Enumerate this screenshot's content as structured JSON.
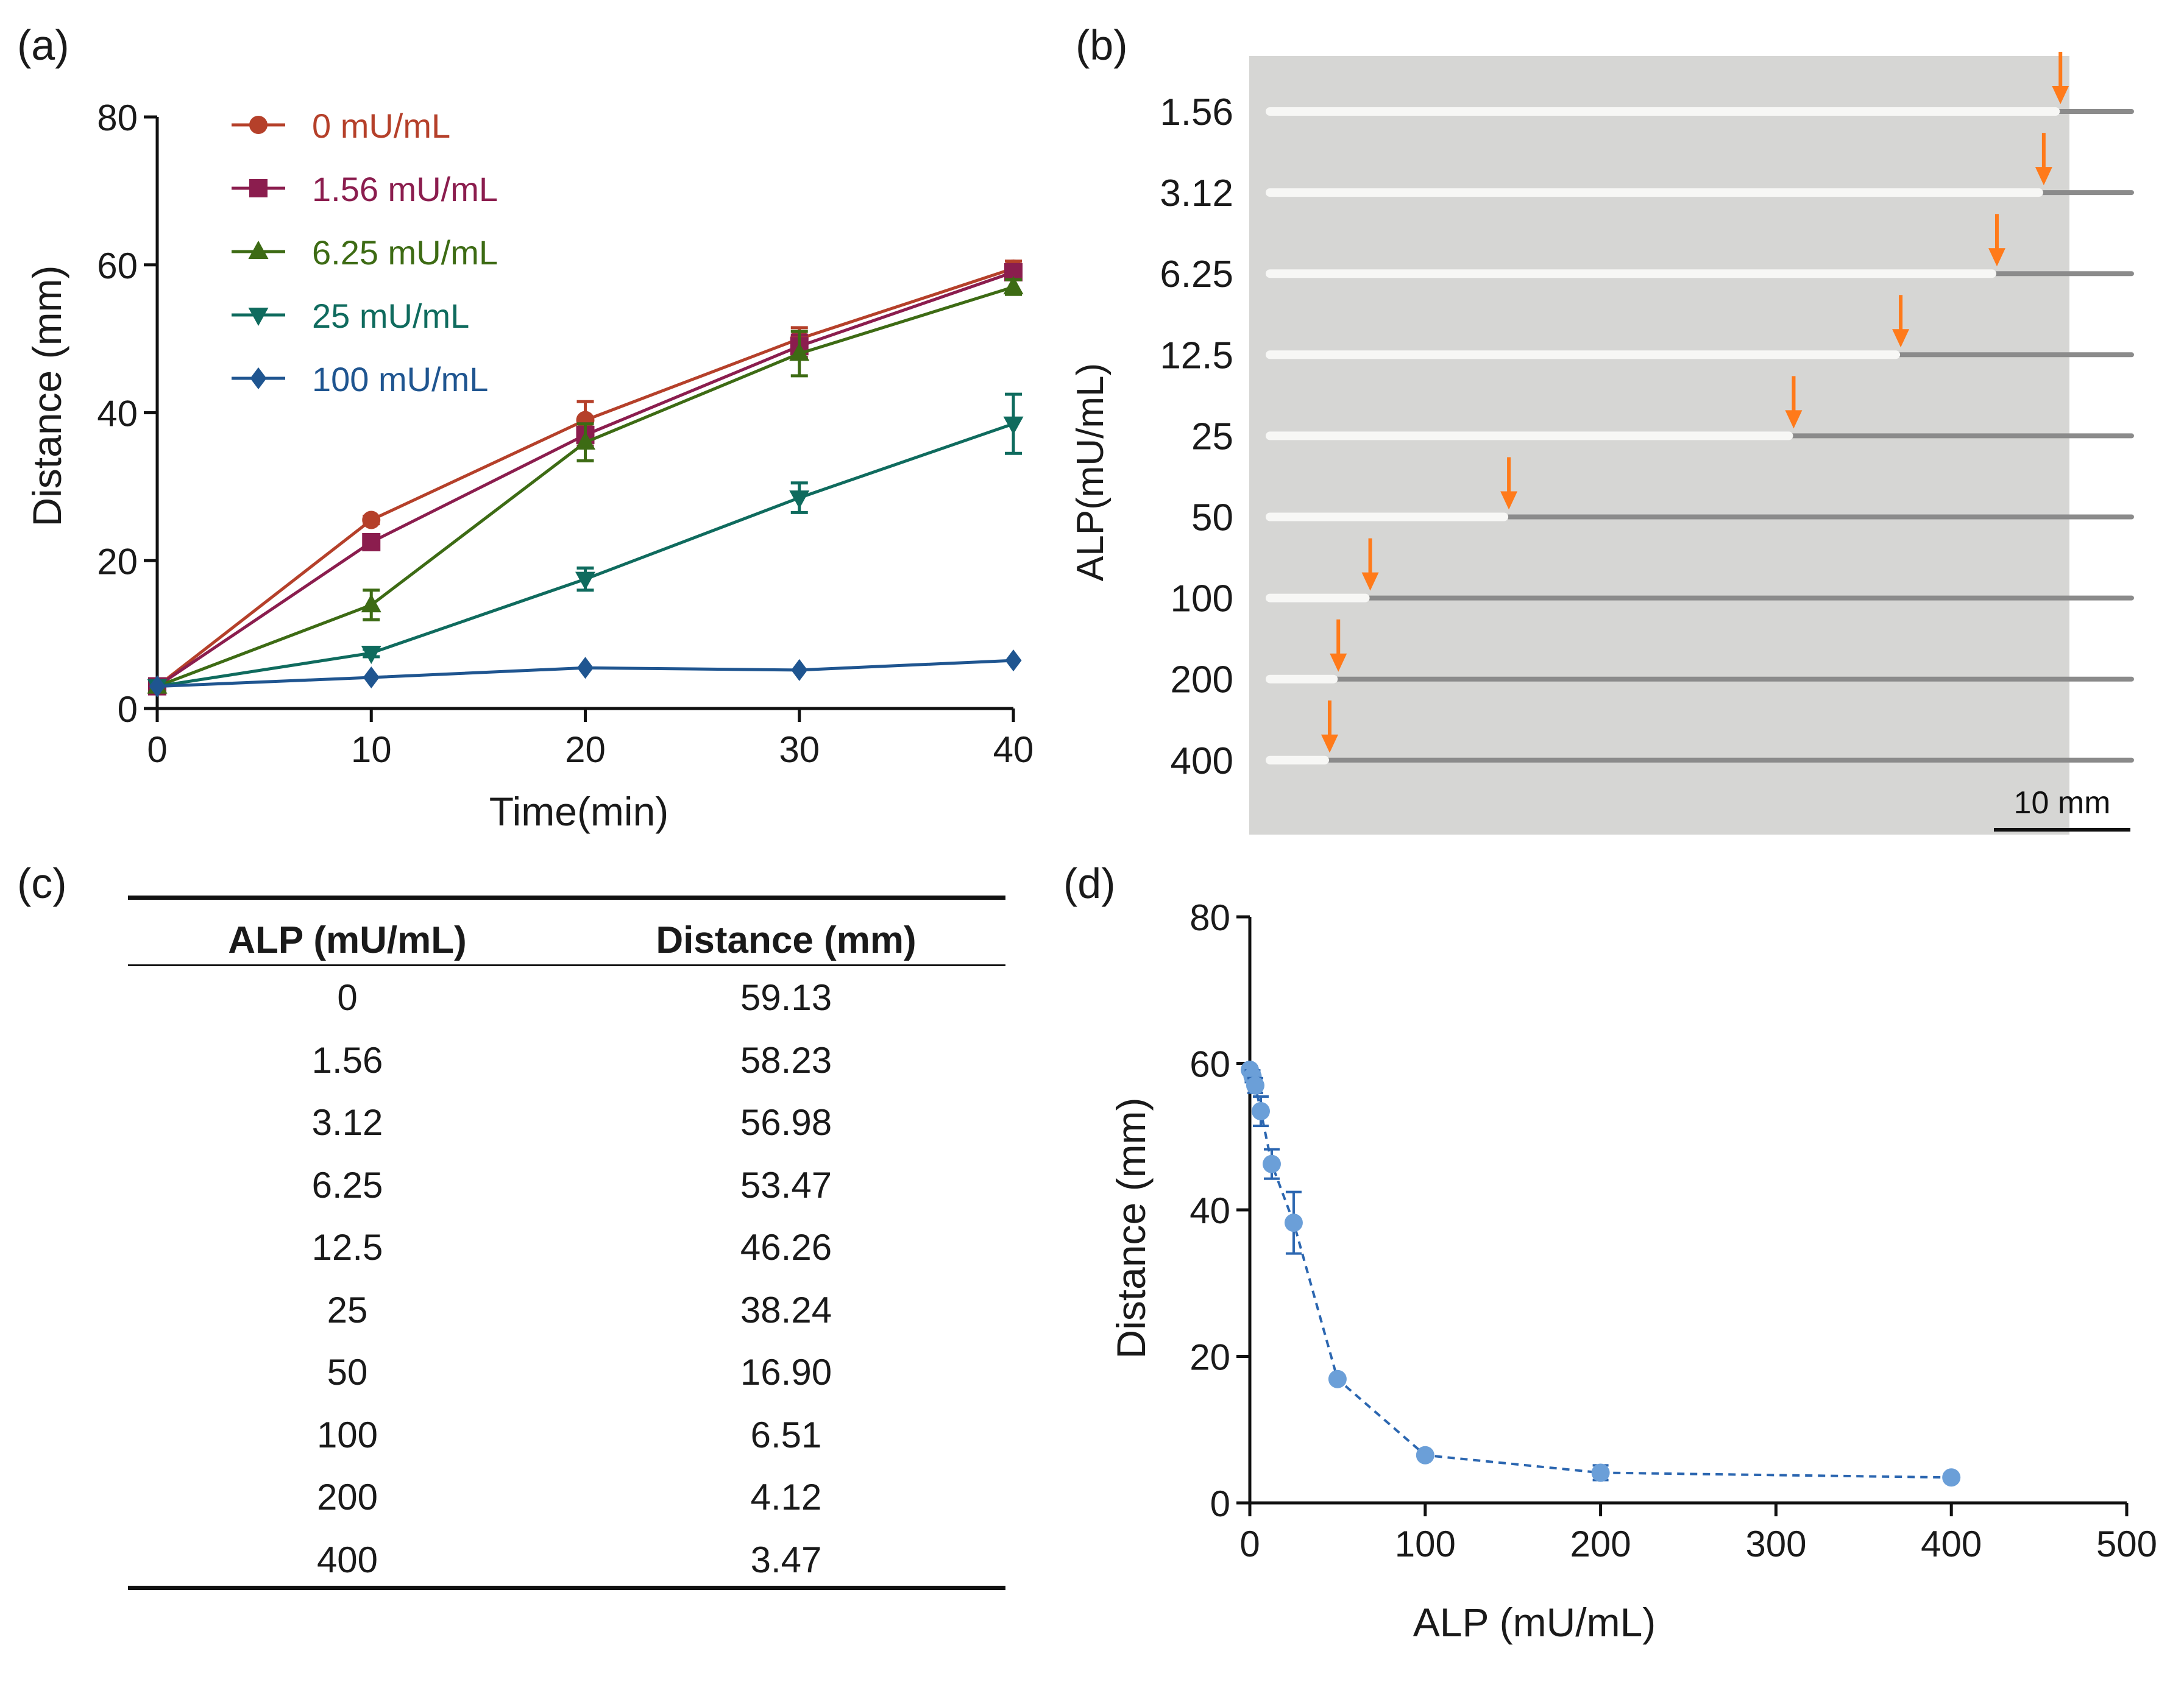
{
  "panels": {
    "a": "(a)",
    "b": "(b)",
    "c": "(c)",
    "d": "(d)"
  },
  "chart_data": [
    {
      "type": "line",
      "panel": "a",
      "xlabel": "Time(min)",
      "ylabel": "Distance (mm)",
      "xlim": [
        0,
        40
      ],
      "ylim": [
        0,
        80
      ],
      "xticks": [
        0,
        10,
        20,
        30,
        40
      ],
      "yticks": [
        0,
        20,
        40,
        60,
        80
      ],
      "x": [
        0,
        10,
        20,
        30,
        40
      ],
      "legend_position": "top-left",
      "series": [
        {
          "name": "0 mU/mL",
          "color": "#b5402a",
          "marker": "circle",
          "values": [
            3,
            25.5,
            39,
            50,
            59.5
          ],
          "errors": [
            0,
            0.5,
            2.5,
            1.5,
            1
          ]
        },
        {
          "name": "1.56 mU/mL",
          "color": "#8b1d4e",
          "marker": "square",
          "values": [
            3,
            22.5,
            37,
            49,
            59
          ],
          "errors": [
            0,
            0.5,
            1.5,
            1.5,
            1
          ]
        },
        {
          "name": "6.25 mU/mL",
          "color": "#3d6b14",
          "marker": "triangle-up",
          "values": [
            3,
            14,
            36,
            48,
            57
          ],
          "errors": [
            0,
            2,
            2.5,
            3,
            1
          ]
        },
        {
          "name": "25 mU/mL",
          "color": "#0f6b5e",
          "marker": "triangle-down",
          "values": [
            3,
            7.5,
            17.5,
            28.5,
            38.5
          ],
          "errors": [
            0,
            0.5,
            1.5,
            2,
            4
          ]
        },
        {
          "name": "100 mU/mL",
          "color": "#1f5590",
          "marker": "diamond",
          "values": [
            3,
            4.2,
            5.5,
            5.2,
            6.5
          ],
          "errors": [
            0,
            0,
            0,
            0,
            0
          ]
        }
      ]
    },
    {
      "type": "image",
      "panel": "b",
      "ylabel": "ALP(mU/mL)",
      "categories": [
        "1.56",
        "3.12",
        "6.25",
        "12.5",
        "25",
        "50",
        "100",
        "200",
        "400"
      ],
      "distances_mm": [
        58.23,
        56.98,
        53.47,
        46.26,
        38.24,
        16.9,
        6.51,
        4.12,
        3.47
      ],
      "scale_bar_label": "10 mm",
      "scale_bar_mm": 10,
      "arrow_color": "#ff7a1a"
    },
    {
      "type": "table",
      "panel": "c",
      "headers": [
        "ALP (mU/mL)",
        "Distance (mm)"
      ],
      "rows": [
        [
          "0",
          "59.13"
        ],
        [
          "1.56",
          "58.23"
        ],
        [
          "3.12",
          "56.98"
        ],
        [
          "6.25",
          "53.47"
        ],
        [
          "12.5",
          "46.26"
        ],
        [
          "25",
          "38.24"
        ],
        [
          "50",
          "16.90"
        ],
        [
          "100",
          "6.51"
        ],
        [
          "200",
          "4.12"
        ],
        [
          "400",
          "3.47"
        ]
      ]
    },
    {
      "type": "scatter",
      "panel": "d",
      "xlabel": "ALP (mU/mL)",
      "ylabel": "Distance (mm)",
      "xlim": [
        0,
        500
      ],
      "ylim": [
        0,
        80
      ],
      "xticks": [
        0,
        100,
        200,
        300,
        400,
        500
      ],
      "yticks": [
        0,
        20,
        40,
        60,
        80
      ],
      "color": "#6b9fd8",
      "line_color": "#2b66b0",
      "x": [
        0,
        1.56,
        3.12,
        6.25,
        12.5,
        25,
        50,
        100,
        200,
        400
      ],
      "y": [
        59.13,
        58.23,
        56.98,
        53.47,
        46.26,
        38.24,
        16.9,
        6.51,
        4.12,
        3.47
      ],
      "errors": [
        0.5,
        0.8,
        1,
        2,
        2,
        4.2,
        0.5,
        0.5,
        1,
        0.3
      ]
    }
  ]
}
